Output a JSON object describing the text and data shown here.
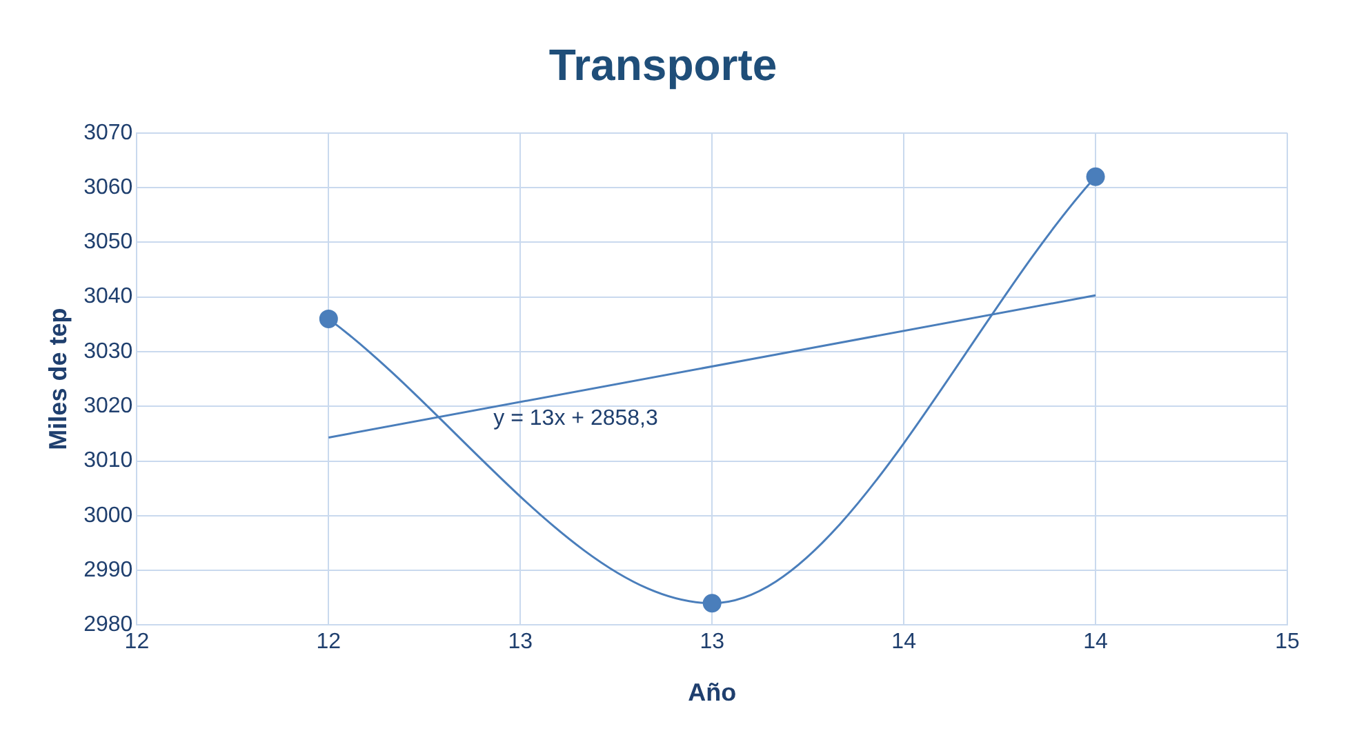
{
  "chart_data": {
    "type": "line",
    "title": "Transporte",
    "xlabel": "Año",
    "ylabel": "Miles de tep",
    "xlim": [
      11.5,
      14.5
    ],
    "xticks": [
      {
        "value": 11.5,
        "label": "12"
      },
      {
        "value": 12,
        "label": "12"
      },
      {
        "value": 12.5,
        "label": "13"
      },
      {
        "value": 13,
        "label": "13"
      },
      {
        "value": 13.5,
        "label": "14"
      },
      {
        "value": 14,
        "label": "14"
      },
      {
        "value": 14.5,
        "label": "15"
      }
    ],
    "ylim": [
      2980,
      3070
    ],
    "yticks": [
      2980,
      2990,
      3000,
      3010,
      3020,
      3030,
      3040,
      3050,
      3060,
      3070
    ],
    "grid": true,
    "legend": false,
    "series": [
      {
        "color": "#4a7ebb",
        "x": [
          12,
          13,
          14
        ],
        "values": [
          3036,
          2984,
          3062
        ],
        "marker": "circle"
      },
      {
        "type": "line",
        "color": "#4a7ebb",
        "x": [
          12,
          14
        ],
        "values": [
          3014.3,
          3040.3
        ],
        "marker": "none"
      }
    ],
    "annotations": [
      "y = 13x + 2858,3"
    ]
  }
}
